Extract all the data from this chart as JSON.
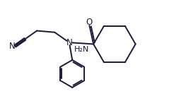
{
  "background_color": "#ffffff",
  "line_color": "#1a1a3a",
  "line_width": 1.4,
  "font_size": 8.5,
  "figsize": [
    2.46,
    1.5
  ],
  "dpi": 100,
  "xlim": [
    0.0,
    10.0
  ],
  "ylim": [
    0.0,
    6.5
  ]
}
